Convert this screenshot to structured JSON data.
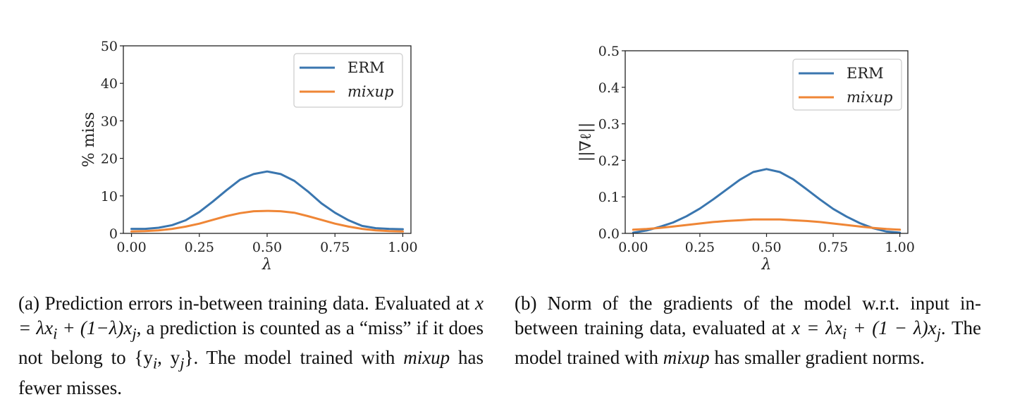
{
  "figures": [
    {
      "caption_segments": [
        "(a) Prediction errors in-between training data. Evaluated at ",
        "x = λx",
        "i",
        " + (1−λ)x",
        "j",
        ", a prediction is counted as a “miss” if it does not belong to {y",
        "i",
        ", y",
        "j",
        "}. The model trained with ",
        "mixup",
        " has fewer misses."
      ]
    },
    {
      "caption_segments": [
        "(b) Norm of the gradients of the model w.r.t. input in-between training data, evaluated at ",
        "x = λx",
        "i",
        " + (1 − λ)x",
        "j",
        ". The model trained with ",
        "mixup",
        " has smaller gradient norms."
      ]
    }
  ],
  "chart_data": [
    {
      "type": "line",
      "xlabel": "λ",
      "ylabel": "% miss",
      "xlim": [
        -0.03,
        1.03
      ],
      "ylim": [
        0,
        50
      ],
      "xticks": [
        0.0,
        0.25,
        0.5,
        0.75,
        1.0
      ],
      "xtick_labels": [
        "0.00",
        "0.25",
        "0.50",
        "0.75",
        "1.00"
      ],
      "yticks": [
        0,
        10,
        20,
        30,
        40,
        50
      ],
      "ytick_labels": [
        "0",
        "10",
        "20",
        "30",
        "40",
        "50"
      ],
      "grid": false,
      "legend_position": "top-right",
      "x": [
        0.0,
        0.05,
        0.1,
        0.15,
        0.2,
        0.25,
        0.3,
        0.35,
        0.4,
        0.45,
        0.5,
        0.55,
        0.6,
        0.65,
        0.7,
        0.75,
        0.8,
        0.85,
        0.9,
        0.95,
        1.0
      ],
      "series": [
        {
          "name": "ERM",
          "italic": false,
          "color": "#3a76af",
          "values": [
            1.2,
            1.2,
            1.5,
            2.2,
            3.5,
            5.7,
            8.5,
            11.5,
            14.3,
            15.8,
            16.5,
            15.8,
            14.0,
            11.2,
            8.0,
            5.5,
            3.5,
            2.0,
            1.4,
            1.2,
            1.1
          ]
        },
        {
          "name": "mixup",
          "italic": true,
          "color": "#ef8636",
          "values": [
            0.5,
            0.6,
            0.8,
            1.2,
            1.8,
            2.6,
            3.6,
            4.6,
            5.4,
            5.9,
            6.0,
            5.9,
            5.5,
            4.6,
            3.6,
            2.6,
            1.8,
            1.2,
            0.8,
            0.6,
            0.5
          ]
        }
      ]
    },
    {
      "type": "line",
      "xlabel": "λ",
      "ylabel": "||∇ℓ||",
      "xlim": [
        -0.03,
        1.03
      ],
      "ylim": [
        0,
        0.5
      ],
      "xticks": [
        0.0,
        0.25,
        0.5,
        0.75,
        1.0
      ],
      "xtick_labels": [
        "0.00",
        "0.25",
        "0.50",
        "0.75",
        "1.00"
      ],
      "yticks": [
        0.0,
        0.1,
        0.2,
        0.3,
        0.4,
        0.5
      ],
      "ytick_labels": [
        "0.0",
        "0.1",
        "0.2",
        "0.3",
        "0.4",
        "0.5"
      ],
      "grid": false,
      "legend_position": "top-right",
      "x": [
        0.0,
        0.05,
        0.1,
        0.15,
        0.2,
        0.25,
        0.3,
        0.35,
        0.4,
        0.45,
        0.5,
        0.55,
        0.6,
        0.65,
        0.7,
        0.75,
        0.8,
        0.85,
        0.9,
        0.95,
        1.0
      ],
      "series": [
        {
          "name": "ERM",
          "italic": false,
          "color": "#3a76af",
          "values": [
            0.002,
            0.008,
            0.018,
            0.03,
            0.047,
            0.068,
            0.093,
            0.12,
            0.147,
            0.168,
            0.176,
            0.168,
            0.148,
            0.121,
            0.093,
            0.067,
            0.046,
            0.028,
            0.014,
            0.005,
            0.002
          ]
        },
        {
          "name": "mixup",
          "italic": true,
          "color": "#ef8636",
          "values": [
            0.01,
            0.012,
            0.015,
            0.019,
            0.023,
            0.027,
            0.031,
            0.034,
            0.036,
            0.038,
            0.038,
            0.038,
            0.036,
            0.034,
            0.031,
            0.027,
            0.023,
            0.019,
            0.015,
            0.012,
            0.01
          ]
        }
      ]
    }
  ]
}
